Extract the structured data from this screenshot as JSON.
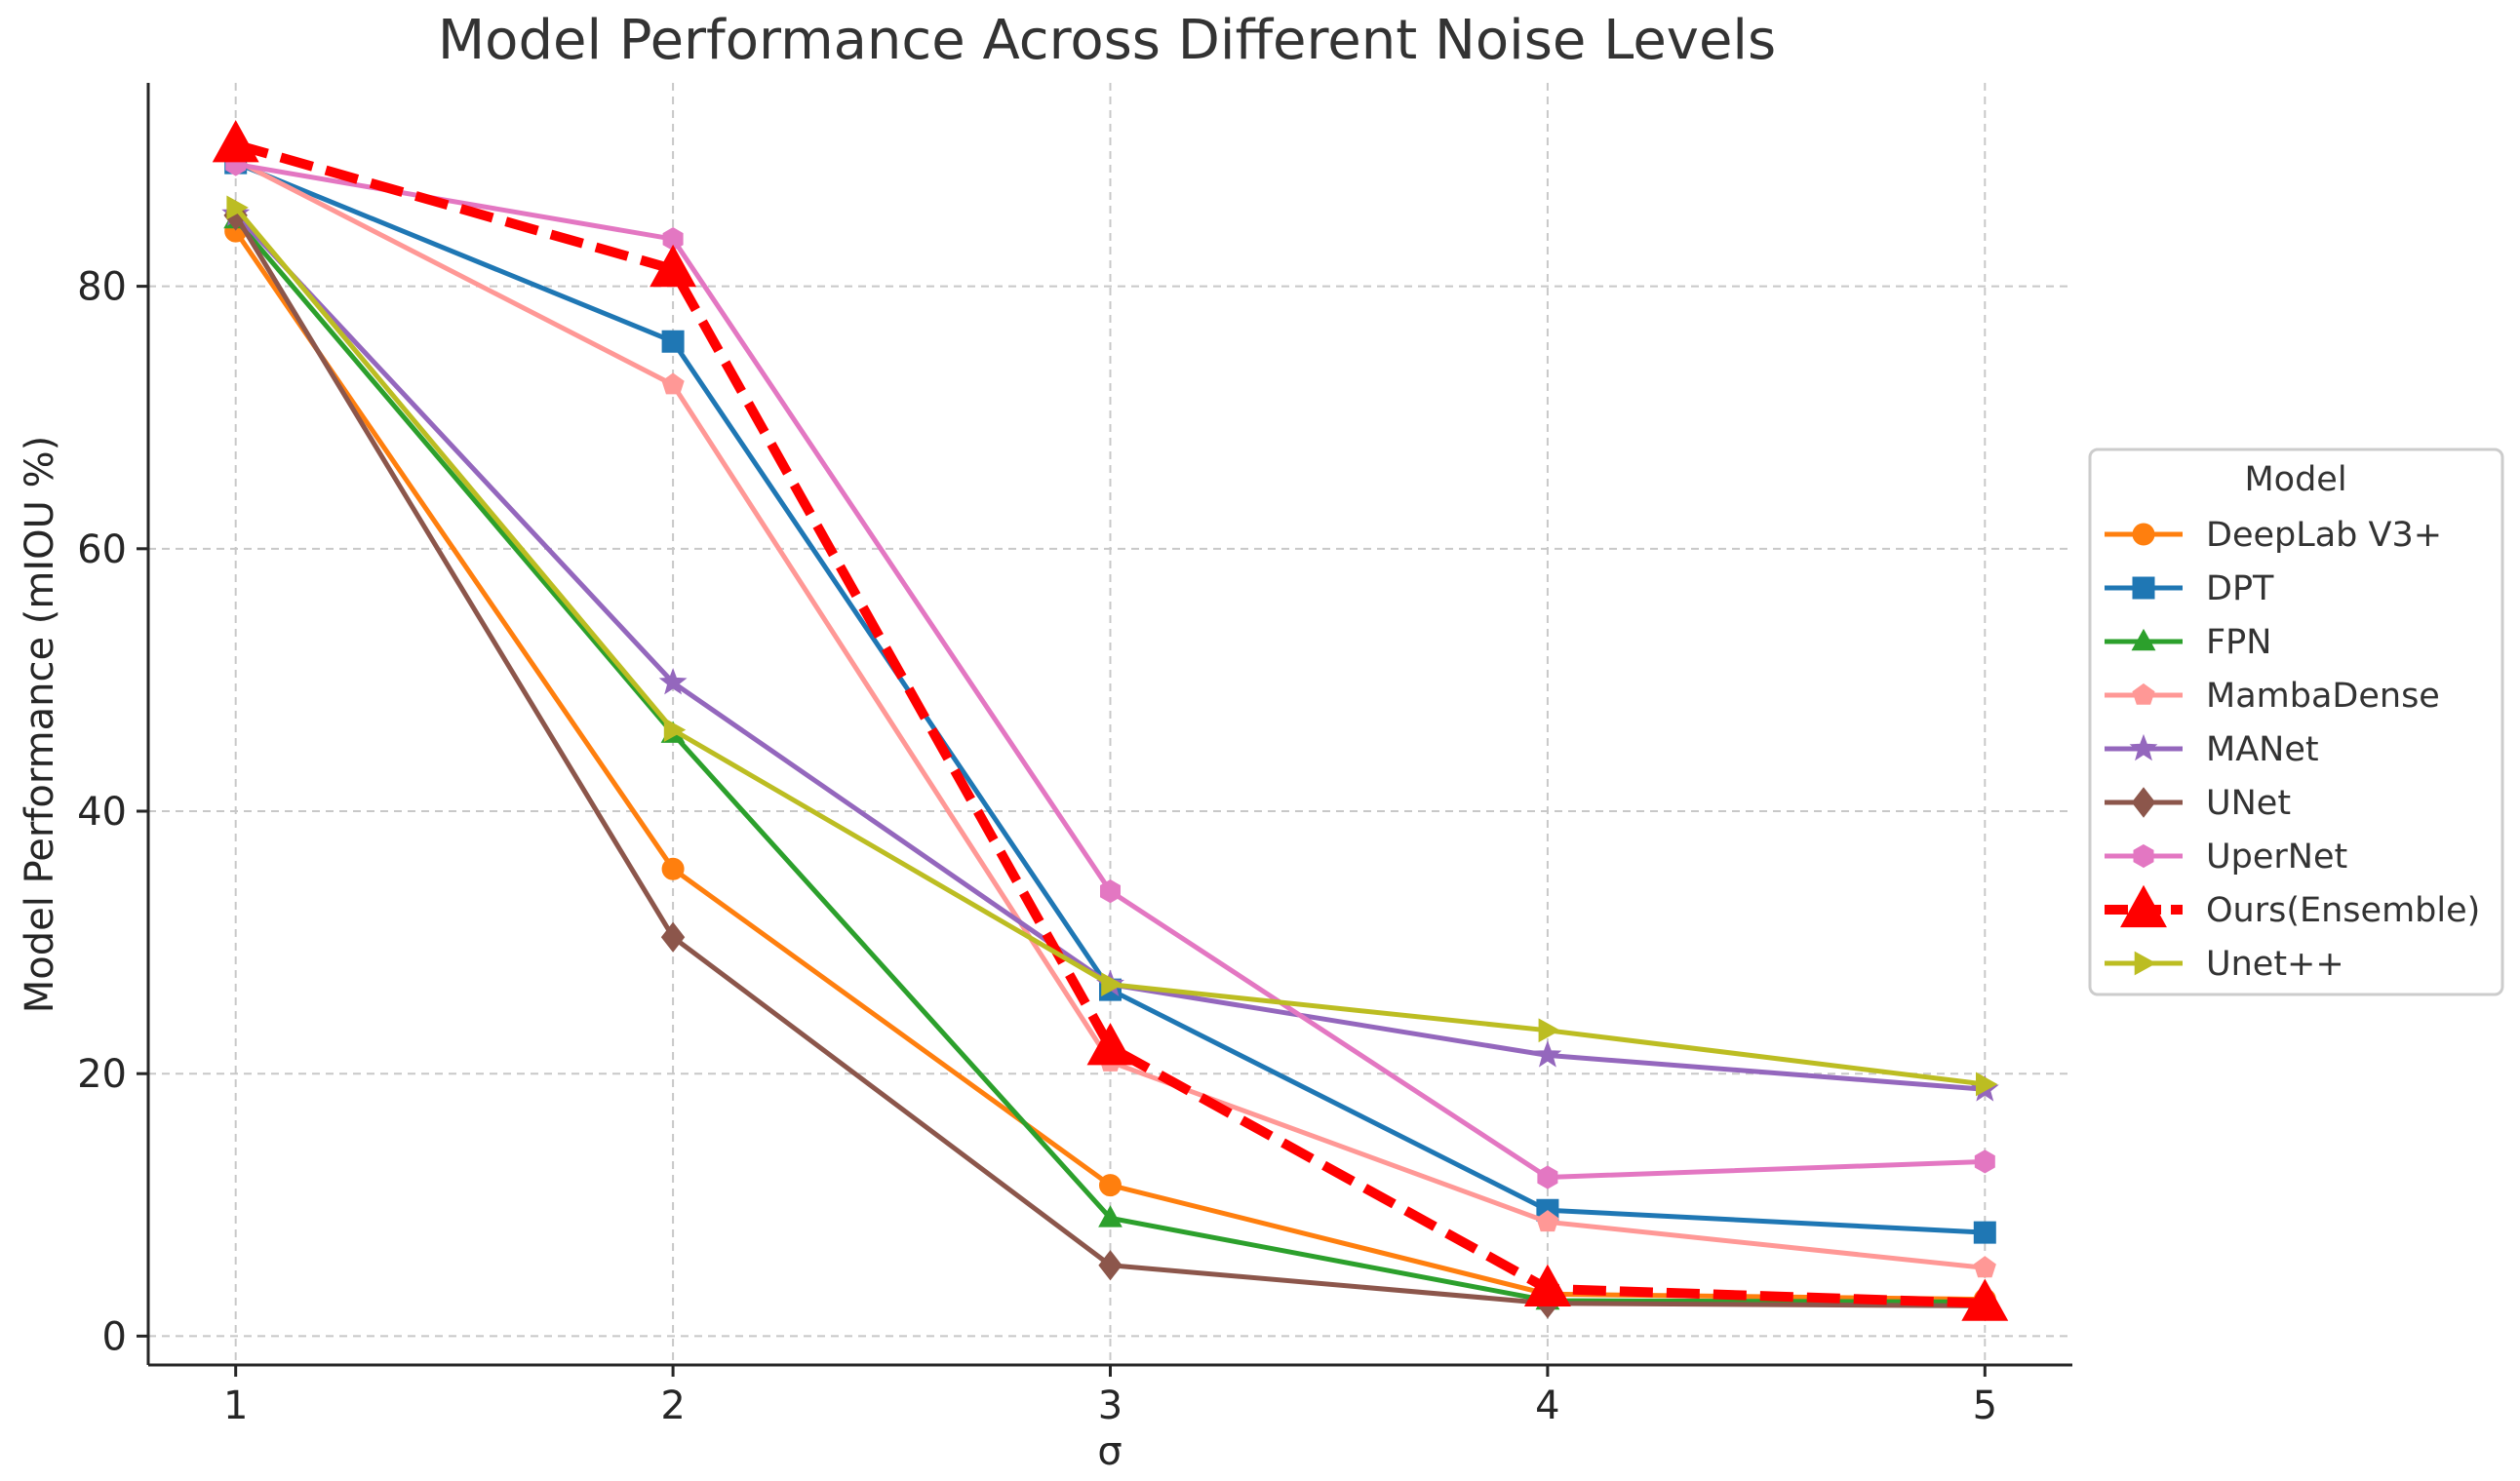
{
  "chart_data": {
    "type": "line",
    "title": "Model Performance Across Different Noise Levels",
    "xlabel": "σ",
    "ylabel": "Model Performance (mIOU %)",
    "x": [
      1,
      2,
      3,
      4,
      5
    ],
    "xlim": [
      0.8,
      5.2
    ],
    "ylim": [
      -2.2,
      95.5
    ],
    "xticks": [
      "1",
      "2",
      "3",
      "4",
      "5"
    ],
    "yticks": [
      "0",
      "20",
      "40",
      "60",
      "80"
    ],
    "grid": true,
    "legend_title": "Model",
    "legend_position": "right",
    "series": [
      {
        "name": "DeepLab V3+",
        "color": "#ff7f0e",
        "marker": "circle",
        "dashed": false,
        "values": [
          84.2,
          35.6,
          11.5,
          3.2,
          2.8
        ]
      },
      {
        "name": "DPT",
        "color": "#1f77b4",
        "marker": "square",
        "dashed": false,
        "values": [
          89.4,
          75.8,
          26.4,
          9.6,
          7.9
        ]
      },
      {
        "name": "FPN",
        "color": "#2ca02c",
        "marker": "triangle",
        "dashed": false,
        "values": [
          85.1,
          45.9,
          9.0,
          2.7,
          2.6
        ]
      },
      {
        "name": "MambaDense",
        "color": "#ff9896",
        "marker": "pentagon",
        "dashed": false,
        "values": [
          89.6,
          72.5,
          20.9,
          8.7,
          5.2
        ]
      },
      {
        "name": "MANet",
        "color": "#9467bd",
        "marker": "star",
        "dashed": false,
        "values": [
          85.5,
          49.8,
          26.8,
          21.4,
          18.8
        ]
      },
      {
        "name": "UNet",
        "color": "#8c564b",
        "marker": "diamond",
        "dashed": false,
        "values": [
          85.4,
          30.4,
          5.4,
          2.5,
          2.3
        ]
      },
      {
        "name": "UperNet",
        "color": "#e377c2",
        "marker": "hexagon",
        "dashed": false,
        "values": [
          89.3,
          83.6,
          33.9,
          12.1,
          13.3
        ]
      },
      {
        "name": "Ours(Ensemble)",
        "color": "#ff0000",
        "marker": "triangle",
        "dashed": true,
        "values": [
          90.8,
          81.3,
          22.0,
          3.6,
          2.5
        ]
      },
      {
        "name": "Unet++",
        "color": "#bcbd22",
        "marker": "triangle-right",
        "dashed": false,
        "values": [
          86.0,
          46.2,
          26.8,
          23.3,
          19.2
        ]
      }
    ]
  }
}
